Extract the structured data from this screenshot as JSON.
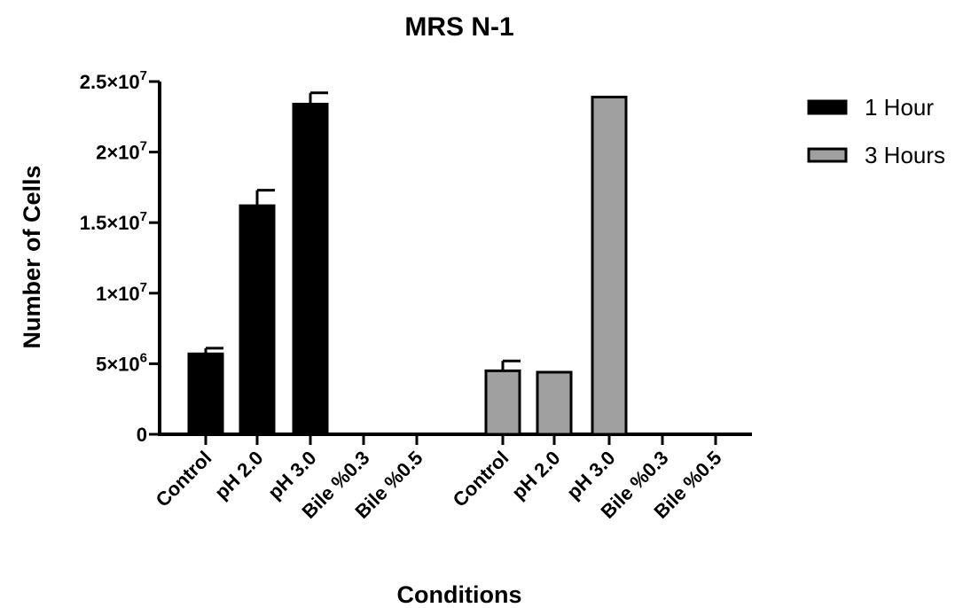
{
  "chart_data": {
    "type": "bar",
    "title": "MRS N-1",
    "xlabel": "Conditions",
    "ylabel": "Number of Cells",
    "ylim": [
      0,
      25000000
    ],
    "yticks": [
      {
        "value": 0,
        "label": "0"
      },
      {
        "value": 5000000,
        "label": "5×10",
        "exp": "6"
      },
      {
        "value": 10000000,
        "label": "1×10",
        "exp": "7"
      },
      {
        "value": 15000000,
        "label": "1.5×10",
        "exp": "7"
      },
      {
        "value": 20000000,
        "label": "2×10",
        "exp": "7"
      },
      {
        "value": 25000000,
        "label": "2.5×10",
        "exp": "7"
      }
    ],
    "grid": false,
    "legend_position": "top-right",
    "series": [
      {
        "name": "1 Hour",
        "color": "#000000",
        "categories": [
          "Control",
          "pH 2.0",
          "pH 3.0",
          "Bile %0.3",
          "Bile %0.5"
        ],
        "values": [
          5700000,
          16200000,
          23400000,
          0,
          0
        ],
        "errors": [
          400000,
          1100000,
          800000,
          0,
          0
        ]
      },
      {
        "name": "3 Hours",
        "color": "#a0a0a0",
        "categories": [
          "Control",
          "pH 2.0",
          "pH 3.0",
          "Bile %0.3",
          "Bile %0.5"
        ],
        "values": [
          4500000,
          4400000,
          23900000,
          0,
          0
        ],
        "errors": [
          700000,
          0,
          0,
          0,
          0
        ]
      }
    ]
  }
}
